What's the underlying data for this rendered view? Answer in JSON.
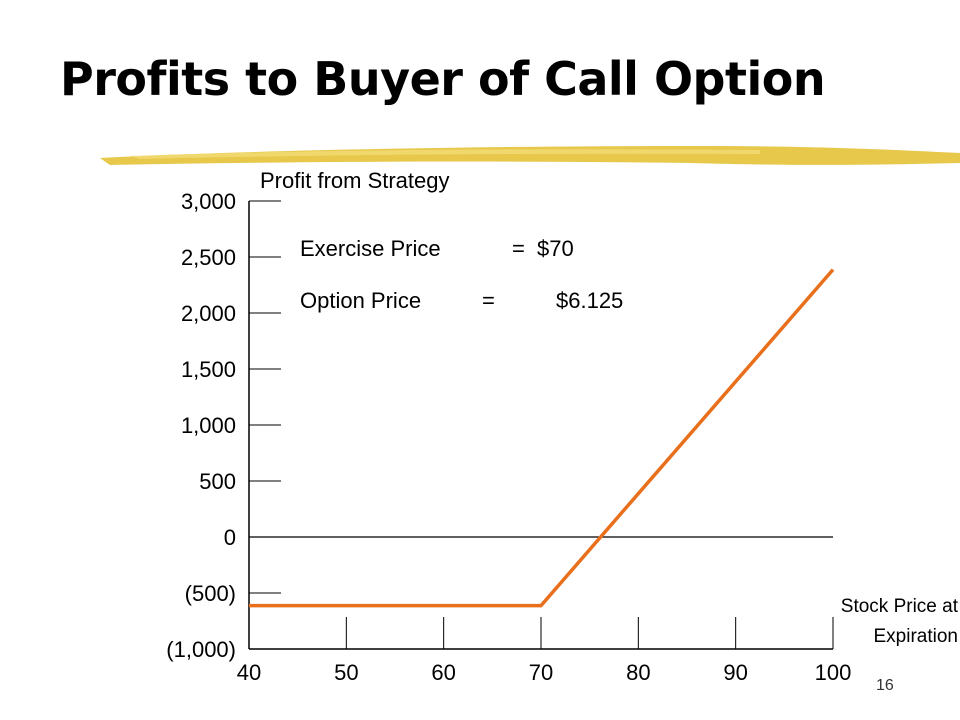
{
  "slide": {
    "title": "Profits to Buyer of Call Option",
    "page_number": "16",
    "brush_color": "#e4c237"
  },
  "chart_data": {
    "type": "line",
    "title": "Profit from Strategy",
    "xlabel": "Stock Price at Expiration",
    "ylabel": "",
    "x": [
      40,
      70,
      100
    ],
    "series": [
      {
        "values": [
          -612.5,
          -612.5,
          2387.5
        ],
        "color": "#e8701c"
      }
    ],
    "xlim": [
      40,
      100
    ],
    "ylim": [
      -1000,
      3000
    ],
    "x_ticks": [
      40,
      50,
      60,
      70,
      80,
      90,
      100
    ],
    "x_tick_labels": [
      "40",
      "50",
      "60",
      "70",
      "80",
      "90",
      "100"
    ],
    "y_ticks": [
      3000,
      2500,
      2000,
      1500,
      1000,
      500,
      0,
      -500,
      -1000
    ],
    "y_tick_labels": [
      "3,000",
      "2,500",
      "2,000",
      "1,500",
      "1,000",
      "500",
      "0",
      "(500)",
      "(1,000)"
    ],
    "xlabel_lines": [
      "Stock Price at",
      "Expiration"
    ],
    "annotations": [
      {
        "label": "Exercise Price",
        "eq": "=",
        "value": "$70"
      },
      {
        "label": "Option Price",
        "eq": "=",
        "value": "$6.125"
      }
    ],
    "grid": false,
    "axis_color": "#000000"
  }
}
